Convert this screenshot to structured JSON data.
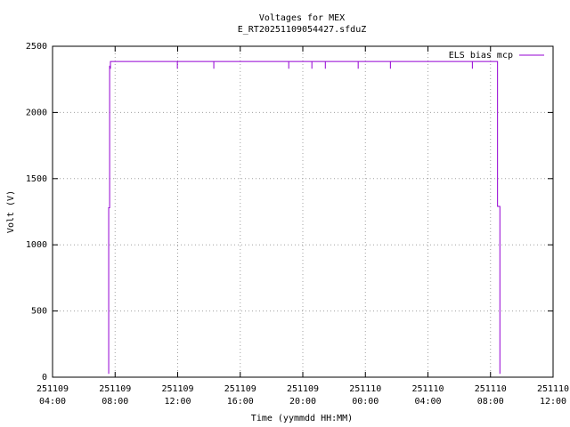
{
  "chart_data": {
    "type": "line",
    "title": "Voltages for MEX",
    "subtitle": "E_RT20251109054427.sfduZ",
    "x_label": "Time (yymmdd HH:MM)",
    "y_label": "Volt (V)",
    "xlim": [
      4,
      36
    ],
    "xticks": [
      {
        "value": 4,
        "label": "251109 04:00"
      },
      {
        "value": 8,
        "label": "251109 08:00"
      },
      {
        "value": 12,
        "label": "251109 12:00"
      },
      {
        "value": 16,
        "label": "251109 16:00"
      },
      {
        "value": 20,
        "label": "251109 20:00"
      },
      {
        "value": 24,
        "label": "251110 00:00"
      },
      {
        "value": 28,
        "label": "251110 04:00"
      },
      {
        "value": 32,
        "label": "251110 08:00"
      },
      {
        "value": 36,
        "label": "251110 12:00"
      }
    ],
    "ylim": [
      0,
      2500
    ],
    "yticks": [
      0,
      500,
      1000,
      1500,
      2000,
      2500
    ],
    "grid": true,
    "legend": "upper right",
    "series": [
      {
        "name": "ELS bias mcp",
        "color": "#9400d3",
        "x": [
          7.59,
          7.59,
          7.65,
          7.65,
          7.7,
          7.7,
          7.7,
          7.7,
          11.98,
          11.98,
          11.98,
          14.31,
          14.31,
          14.31,
          19.1,
          19.1,
          19.1,
          20.58,
          20.58,
          20.58,
          21.44,
          21.44,
          21.44,
          23.54,
          23.54,
          23.54,
          25.6,
          25.6,
          25.6,
          30.84,
          30.84,
          30.84,
          32.45,
          32.45,
          32.6,
          32.6
        ],
        "values": [
          25,
          1280,
          1280,
          2350,
          2350,
          2385,
          2330,
          2385,
          2385,
          2330,
          2385,
          2385,
          2330,
          2385,
          2385,
          2330,
          2385,
          2385,
          2330,
          2385,
          2385,
          2330,
          2385,
          2385,
          2330,
          2385,
          2385,
          2330,
          2385,
          2385,
          2330,
          2385,
          2385,
          1290,
          1290,
          25
        ]
      }
    ]
  }
}
